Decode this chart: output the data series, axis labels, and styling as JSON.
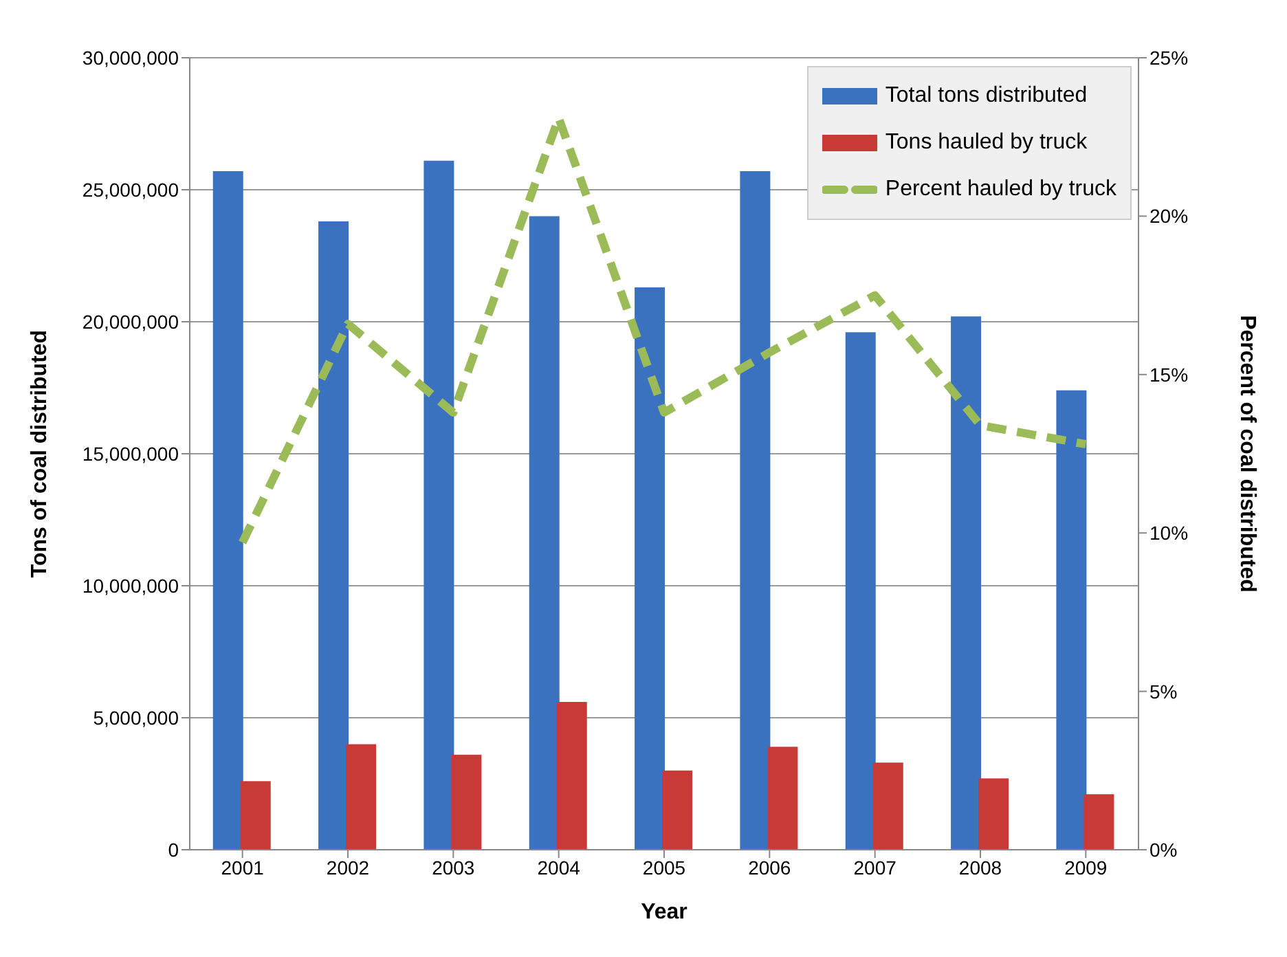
{
  "chart_data": {
    "type": "bar",
    "xlabel": "Year",
    "ylabel": "Tons of coal distributed",
    "y2label": "Percent of coal distributed",
    "categories": [
      "2001",
      "2002",
      "2003",
      "2004",
      "2005",
      "2006",
      "2007",
      "2008",
      "2009"
    ],
    "series": [
      {
        "name": "Total tons distributed",
        "color": "#3a72c0",
        "values": [
          25700000,
          23800000,
          26100000,
          24000000,
          21300000,
          25700000,
          19600000,
          20200000,
          17400000
        ]
      },
      {
        "name": "Tons hauled by truck",
        "color": "#c83a36",
        "values": [
          2600000,
          4000000,
          3600000,
          5600000,
          3000000,
          3900000,
          3300000,
          2700000,
          2100000
        ]
      },
      {
        "name": "Percent hauled by truck",
        "type": "line",
        "axis": "y2",
        "color": "#9bbb59",
        "line_style": "dashed",
        "marker": "none",
        "values": [
          9.7,
          16.6,
          13.8,
          23.1,
          13.8,
          15.7,
          17.5,
          13.4,
          12.8
        ]
      }
    ],
    "ylim": [
      0,
      30000000
    ],
    "yticks": [
      {
        "value": 0,
        "label": "0"
      },
      {
        "value": 5000000,
        "label": "5,000,000"
      },
      {
        "value": 10000000,
        "label": "10,000,000"
      },
      {
        "value": 15000000,
        "label": "15,000,000"
      },
      {
        "value": 20000000,
        "label": "20,000,000"
      },
      {
        "value": 25000000,
        "label": "25,000,000"
      },
      {
        "value": 30000000,
        "label": "30,000,000"
      }
    ],
    "y2lim": [
      0,
      25
    ],
    "y2ticks": [
      {
        "value": 0,
        "label": "0%"
      },
      {
        "value": 5,
        "label": "5%"
      },
      {
        "value": 10,
        "label": "10%"
      },
      {
        "value": 15,
        "label": "15%"
      },
      {
        "value": 20,
        "label": "20%"
      },
      {
        "value": 25,
        "label": "25%"
      }
    ],
    "grid": "y",
    "legend": "top right"
  }
}
